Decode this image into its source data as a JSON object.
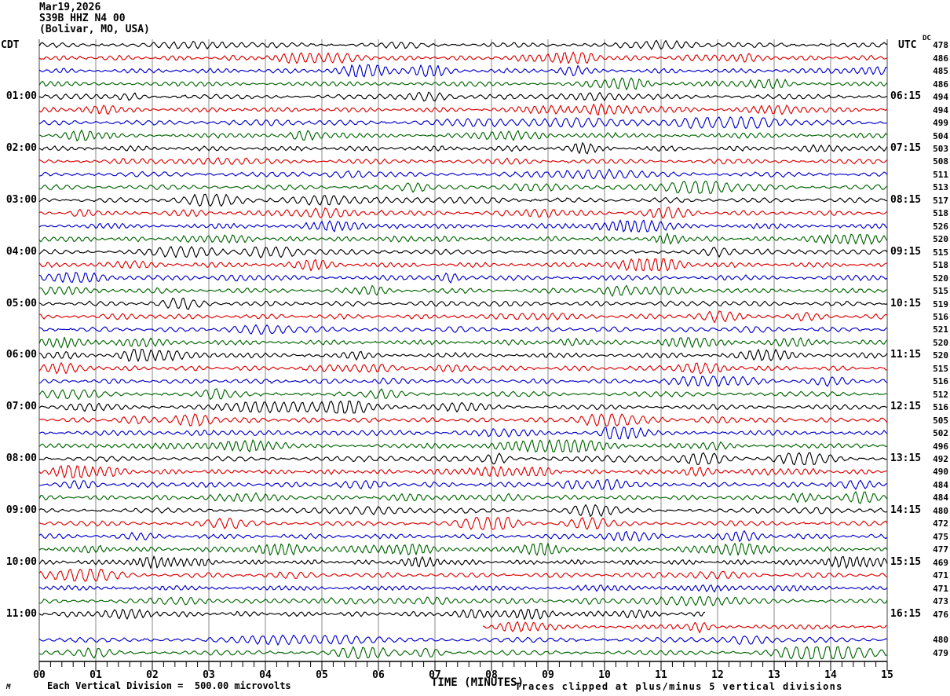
{
  "title": {
    "line1": "Mar19,2026",
    "line2": "S39B HHZ N4 00",
    "line3": "(Bolivar, MO, USA)"
  },
  "axes": {
    "left_header": "CDT",
    "right_header": "UTC",
    "dc_header": "DC",
    "xlabel": "TIME (MINUTES)",
    "x_tick_labels": [
      "00",
      "01",
      "02",
      "03",
      "04",
      "05",
      "06",
      "07",
      "08",
      "09",
      "10",
      "11",
      "12",
      "13",
      "14",
      "15"
    ]
  },
  "footer": {
    "corner_mark": "M",
    "scale_note": "Each Vertical Division =  500.00 microvolts",
    "clip_note": "Traces clipped at plus/minus 5 vertical divisions"
  },
  "colors": {
    "trace_black": "#000000",
    "trace_red": "#e00000",
    "trace_blue": "#0000cc",
    "trace_green": "#006600",
    "grid_line": "#8a8a8a",
    "plot_border": "#444444",
    "axis": "#000000"
  },
  "chart_data": {
    "type": "line",
    "subtype": "helicorder-seismogram",
    "date": "Mar19,2026",
    "station": "S39B HHZ N4 00",
    "location": "(Bolivar, MO, USA)",
    "x_axis": {
      "label": "TIME (MINUTES)",
      "min": 0,
      "max": 15,
      "major_tick": 1,
      "minor_tick": 0.2
    },
    "minutes_per_row": 15,
    "rows": 48,
    "trace_color_cycle": [
      "#000000",
      "#e00000",
      "#0000cc",
      "#006600"
    ],
    "vertical_division_microvolts": 500.0,
    "clip_note": "Traces clipped at plus/minus 5 vertical divisions",
    "left_time_labels": [
      {
        "row": 5,
        "label": "01:00"
      },
      {
        "row": 9,
        "label": "02:00"
      },
      {
        "row": 13,
        "label": "03:00"
      },
      {
        "row": 17,
        "label": "04:00"
      },
      {
        "row": 21,
        "label": "05:00"
      },
      {
        "row": 25,
        "label": "06:00"
      },
      {
        "row": 29,
        "label": "07:00"
      },
      {
        "row": 33,
        "label": "08:00"
      },
      {
        "row": 37,
        "label": "09:00"
      },
      {
        "row": 41,
        "label": "10:00"
      },
      {
        "row": 45,
        "label": "11:00"
      }
    ],
    "right_time_labels": [
      {
        "row": 5,
        "label": "06:15"
      },
      {
        "row": 9,
        "label": "07:15"
      },
      {
        "row": 13,
        "label": "08:15"
      },
      {
        "row": 17,
        "label": "09:15"
      },
      {
        "row": 21,
        "label": "10:15"
      },
      {
        "row": 25,
        "label": "11:15"
      },
      {
        "row": 29,
        "label": "12:15"
      },
      {
        "row": 33,
        "label": "13:15"
      },
      {
        "row": 37,
        "label": "14:15"
      },
      {
        "row": 41,
        "label": "15:15"
      },
      {
        "row": 45,
        "label": "16:15"
      }
    ],
    "dc_offsets": [
      478,
      486,
      485,
      486,
      494,
      494,
      499,
      504,
      503,
      508,
      511,
      513,
      517,
      518,
      526,
      520,
      515,
      518,
      520,
      515,
      519,
      516,
      521,
      520,
      520,
      515,
      516,
      512,
      516,
      505,
      502,
      496,
      492,
      490,
      484,
      484,
      480,
      472,
      475,
      477,
      469,
      471,
      471,
      473,
      476,
      null,
      480,
      479
    ],
    "partial_traces": [
      {
        "row": 45,
        "start_min": 0,
        "end_min": 11.8
      },
      {
        "row": 46,
        "start_min": 7.85,
        "end_min": 15
      }
    ]
  }
}
